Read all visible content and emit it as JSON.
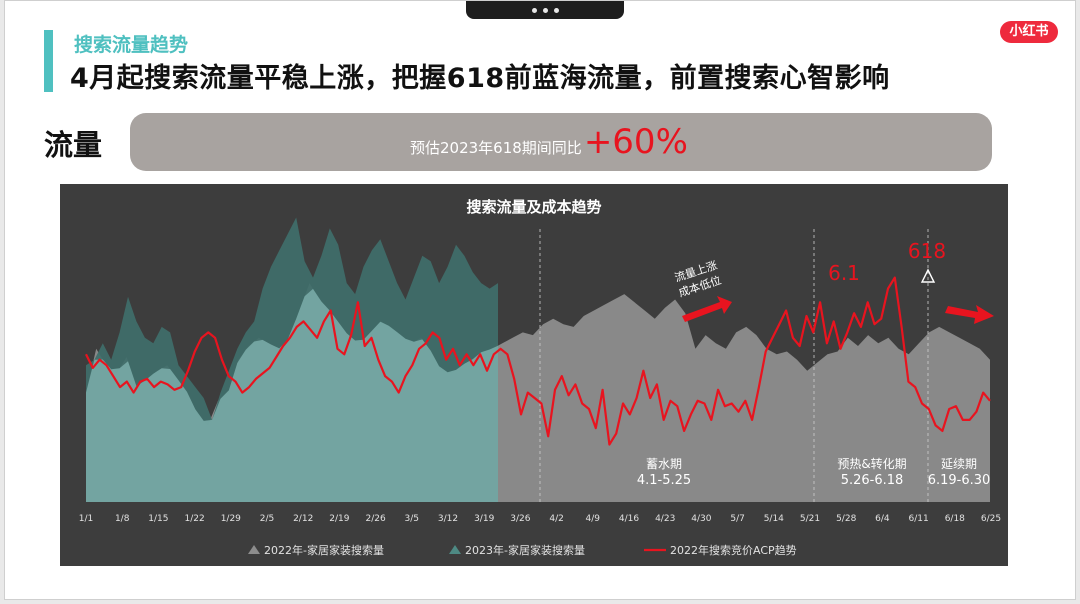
{
  "header": {
    "subtitle": "搜索流量趋势",
    "title": "4月起搜索流量平稳上涨，把握618前蓝海流量，前置搜索心智影响",
    "logo": "小红书"
  },
  "metric": {
    "label": "流量",
    "text": "预估2023年618期间同比",
    "value": "+60%"
  },
  "colors": {
    "teal_accent": "#4fc0c0",
    "teal_area": "#3f6e6a",
    "teal_light": "#78aaa6",
    "gray_area": "#8d8d8d",
    "red_line": "#e8141f",
    "logo_red": "#ee2a3d"
  },
  "chart_data": {
    "type": "area",
    "title": "搜索流量及成本趋势",
    "x_tick_labels": [
      "1/1",
      "1/8",
      "1/15",
      "1/22",
      "1/29",
      "2/5",
      "2/12",
      "2/19",
      "2/26",
      "3/5",
      "3/12",
      "3/19",
      "3/26",
      "4/2",
      "4/9",
      "4/16",
      "4/23",
      "4/30",
      "5/7",
      "5/14",
      "5/21",
      "5/28",
      "6/4",
      "6/11",
      "6/18",
      "6/25"
    ],
    "y_axis": "unlabeled (relative index, 0-100)",
    "ylim": [
      0,
      100
    ],
    "series": [
      {
        "name": "2022年-家居家装搜索量",
        "kind": "area",
        "color": "#8d8d8d",
        "values": [
          40,
          56,
          50,
          47,
          53,
          42,
          45,
          48,
          50,
          45,
          40,
          32,
          28,
          37,
          40,
          52,
          57,
          60,
          58,
          56,
          60,
          70,
          80,
          74,
          70,
          65,
          60,
          58,
          62,
          66,
          64,
          61,
          58,
          60,
          55,
          48,
          47,
          50,
          52,
          55,
          56,
          58,
          60,
          62,
          61,
          65,
          67,
          65,
          64,
          68,
          70,
          72,
          74,
          76,
          73,
          70,
          67,
          71,
          74,
          69,
          56,
          61,
          58,
          56,
          62,
          64,
          61,
          56,
          54,
          55,
          52,
          48,
          51,
          54,
          55,
          60,
          57,
          61,
          58,
          60,
          56,
          54,
          58,
          62,
          64,
          62,
          60,
          58,
          56,
          52
        ]
      },
      {
        "name": "2023年-家居家装搜索量",
        "kind": "area",
        "color": "#3f6e6a",
        "values": [
          50,
          52,
          58,
          52,
          62,
          75,
          66,
          60,
          58,
          64,
          62,
          50,
          46,
          42,
          38,
          30,
          40,
          48,
          56,
          62,
          66,
          78,
          86,
          92,
          98,
          104,
          88,
          82,
          90,
          100,
          94,
          80,
          76,
          86,
          92,
          96,
          88,
          80,
          74,
          82,
          90,
          88,
          80,
          86,
          94,
          90,
          84,
          80,
          78,
          80
        ]
      },
      {
        "name": "2022年搜索竞价ACP趋势",
        "kind": "line",
        "color": "#e8141f",
        "values": [
          54,
          49,
          52,
          50,
          46,
          42,
          44,
          40,
          44,
          45,
          42,
          44,
          43,
          41,
          42,
          48,
          55,
          60,
          62,
          60,
          52,
          46,
          44,
          40,
          42,
          45,
          47,
          49,
          53,
          57,
          60,
          64,
          66,
          63,
          60,
          66,
          70,
          56,
          54,
          61,
          73,
          57,
          60,
          52,
          46,
          44,
          40,
          46,
          50,
          56,
          58,
          62,
          60,
          52,
          56,
          50,
          54,
          50,
          54,
          48,
          54,
          56,
          54,
          45,
          32,
          40,
          38,
          36,
          24,
          41,
          46,
          39,
          43,
          36,
          34,
          27,
          41,
          21,
          25,
          36,
          32,
          38,
          48,
          38,
          43,
          30,
          37,
          35,
          26,
          32,
          37,
          36,
          30,
          41,
          35,
          36,
          33,
          37,
          30,
          42,
          55,
          60,
          65,
          70,
          60,
          57,
          68,
          62,
          73,
          58,
          66,
          56,
          62,
          69,
          64,
          73,
          65,
          67,
          78,
          82,
          64,
          44,
          42,
          36,
          34,
          28,
          26,
          34,
          35,
          30,
          30,
          33,
          40,
          37
        ]
      }
    ],
    "annotations": [
      {
        "text": "流量上涨",
        "text2": "成本低位"
      },
      {
        "text": "6.1"
      },
      {
        "text": "618"
      },
      {
        "text": "蓄水期",
        "text2": "4.1-5.25"
      },
      {
        "text": "预热&转化期",
        "text2": "5.26-6.18"
      },
      {
        "text": "延续期",
        "text2": "6.19-6.30"
      }
    ],
    "legend_position": "bottom",
    "grid": false
  }
}
